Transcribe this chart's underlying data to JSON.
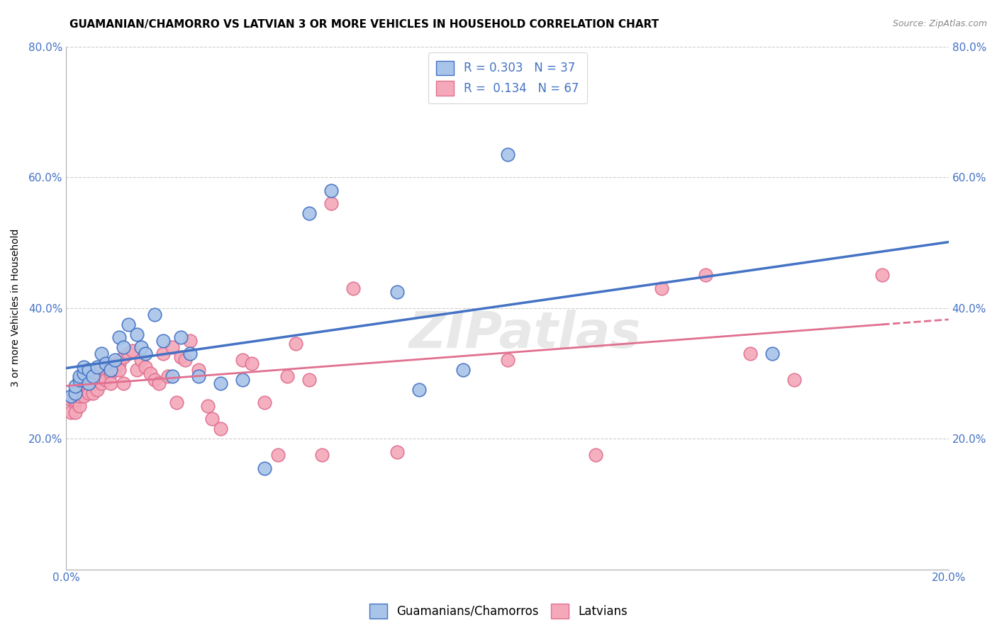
{
  "title": "GUAMANIAN/CHAMORRO VS LATVIAN 3 OR MORE VEHICLES IN HOUSEHOLD CORRELATION CHART",
  "source": "Source: ZipAtlas.com",
  "ylabel": "3 or more Vehicles in Household",
  "xlim": [
    0.0,
    0.2
  ],
  "ylim": [
    0.0,
    0.8
  ],
  "xticks": [
    0.0,
    0.04,
    0.08,
    0.12,
    0.16,
    0.2
  ],
  "yticks": [
    0.0,
    0.2,
    0.4,
    0.6,
    0.8
  ],
  "xticklabels": [
    "0.0%",
    "",
    "",
    "",
    "",
    "20.0%"
  ],
  "yticklabels": [
    "",
    "20.0%",
    "40.0%",
    "60.0%",
    "80.0%"
  ],
  "guamanian_color": "#A8C4E8",
  "latvian_color": "#F4A8BA",
  "guamanian_edge_color": "#4472C4",
  "latvian_edge_color": "#E07090",
  "guamanian_line_color": "#4472C4",
  "latvian_line_color": "#E07090",
  "R_guamanian": 0.303,
  "N_guamanian": 37,
  "R_latvian": 0.134,
  "N_latvian": 67,
  "background_color": "#FFFFFF",
  "grid_color": "#C8C8C8",
  "title_fontsize": 11,
  "axis_label_fontsize": 10,
  "tick_fontsize": 11,
  "legend_fontsize": 12,
  "guamanians_x": [
    0.001,
    0.002,
    0.002,
    0.003,
    0.003,
    0.004,
    0.004,
    0.005,
    0.005,
    0.006,
    0.007,
    0.008,
    0.009,
    0.01,
    0.011,
    0.012,
    0.013,
    0.014,
    0.016,
    0.017,
    0.018,
    0.02,
    0.022,
    0.024,
    0.026,
    0.028,
    0.03,
    0.035,
    0.04,
    0.045,
    0.055,
    0.06,
    0.075,
    0.08,
    0.09,
    0.1,
    0.16
  ],
  "guamanians_y": [
    0.265,
    0.27,
    0.28,
    0.29,
    0.295,
    0.3,
    0.31,
    0.285,
    0.305,
    0.295,
    0.31,
    0.33,
    0.315,
    0.305,
    0.32,
    0.355,
    0.34,
    0.375,
    0.36,
    0.34,
    0.33,
    0.39,
    0.35,
    0.295,
    0.355,
    0.33,
    0.295,
    0.285,
    0.29,
    0.155,
    0.545,
    0.58,
    0.425,
    0.275,
    0.305,
    0.635,
    0.33
  ],
  "latvians_x": [
    0.001,
    0.001,
    0.002,
    0.002,
    0.002,
    0.003,
    0.003,
    0.003,
    0.004,
    0.004,
    0.005,
    0.005,
    0.006,
    0.006,
    0.007,
    0.007,
    0.007,
    0.008,
    0.008,
    0.009,
    0.009,
    0.01,
    0.01,
    0.01,
    0.011,
    0.011,
    0.012,
    0.012,
    0.013,
    0.013,
    0.014,
    0.015,
    0.016,
    0.017,
    0.018,
    0.019,
    0.02,
    0.021,
    0.022,
    0.023,
    0.024,
    0.025,
    0.026,
    0.027,
    0.028,
    0.03,
    0.032,
    0.033,
    0.035,
    0.04,
    0.042,
    0.045,
    0.048,
    0.05,
    0.052,
    0.055,
    0.058,
    0.06,
    0.065,
    0.075,
    0.1,
    0.12,
    0.135,
    0.145,
    0.155,
    0.165,
    0.185
  ],
  "latvians_y": [
    0.26,
    0.24,
    0.255,
    0.26,
    0.24,
    0.25,
    0.27,
    0.265,
    0.275,
    0.265,
    0.285,
    0.27,
    0.285,
    0.27,
    0.3,
    0.29,
    0.275,
    0.295,
    0.285,
    0.305,
    0.29,
    0.305,
    0.3,
    0.285,
    0.315,
    0.305,
    0.315,
    0.305,
    0.325,
    0.285,
    0.33,
    0.335,
    0.305,
    0.32,
    0.31,
    0.3,
    0.29,
    0.285,
    0.33,
    0.295,
    0.34,
    0.255,
    0.325,
    0.32,
    0.35,
    0.305,
    0.25,
    0.23,
    0.215,
    0.32,
    0.315,
    0.255,
    0.175,
    0.295,
    0.345,
    0.29,
    0.175,
    0.56,
    0.43,
    0.18,
    0.32,
    0.175,
    0.43,
    0.45,
    0.33,
    0.29,
    0.45
  ],
  "zipatlas_watermark": "ZIPatlas",
  "watermark_color": "#E8E8E8"
}
